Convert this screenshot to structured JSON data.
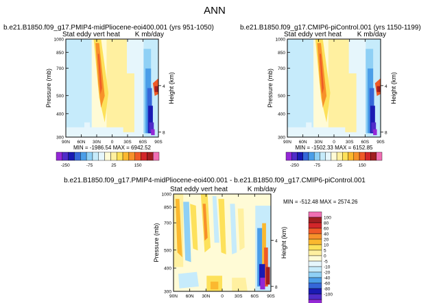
{
  "figure": {
    "title": "ANN",
    "label_colors": [
      "#9428d6",
      "#4f2cc9",
      "#1a1ab3",
      "#3567d9",
      "#4b9ee8",
      "#8fd0f5",
      "#c6ebfb",
      "#e6f6fc",
      "#fffbd6",
      "#fff0a0",
      "#fde15a",
      "#fbb82f",
      "#f7912a",
      "#ef5a27",
      "#d2262a",
      "#a11e21",
      "#f06fb3"
    ]
  },
  "chart_data": [
    {
      "type": "heatmap",
      "title": "b.e21.B1850.f09_g17.PMIP4-midPliocene-eoi400.001  (yrs 951-1050)",
      "left_title": "Stat eddy vert heat",
      "right_title": "K mb/day",
      "xlabel": "",
      "ylabel": "Pressure (mb)",
      "right_ylabel": "Height (km)",
      "x_ticks": [
        "90N",
        "60N",
        "30N",
        "0",
        "30S",
        "60S",
        "90S"
      ],
      "y_ticks": [
        "300",
        "400",
        "500",
        "700",
        "850",
        "1000"
      ],
      "height_ticks": [
        "8",
        "4"
      ],
      "stats": "MIN = -1986.54   MAX = 6942.52",
      "colorbar_labels": [
        "-250",
        "-75",
        "25",
        "150"
      ]
    },
    {
      "type": "heatmap",
      "title": "b.e21.B1850.f09_g17.CMIP6-piControl.001  (yrs 1150-1199)",
      "left_title": "Stat eddy vert heat",
      "right_title": "K mb/day",
      "xlabel": "",
      "ylabel": "Pressure (mb)",
      "right_ylabel": "Height (km)",
      "x_ticks": [
        "90N",
        "60N",
        "30N",
        "0",
        "30S",
        "60S",
        "90S"
      ],
      "y_ticks": [
        "300",
        "400",
        "500",
        "700",
        "850",
        "1000"
      ],
      "height_ticks": [
        "8",
        "4"
      ],
      "stats": "MIN = -1502.33   MAX = 6152.85",
      "colorbar_labels": [
        "-250",
        "-75",
        "25",
        "150"
      ]
    },
    {
      "type": "heatmap",
      "title": "b.e21.B1850.f09_g17.PMIP4-midPliocene-eoi400.001  -  b.e21.B1850.f09_g17.CMIP6-piControl.001",
      "left_title": "Stat eddy vert heat",
      "right_title": "K mb/day",
      "xlabel": "",
      "ylabel": "Pressure (mb)",
      "right_ylabel": "Height (km)",
      "x_ticks": [
        "90N",
        "60N",
        "30N",
        "0",
        "30S",
        "60S",
        "90S"
      ],
      "y_ticks": [
        "300",
        "400",
        "500",
        "700",
        "850",
        "1000"
      ],
      "height_ticks": [
        "8",
        "4"
      ],
      "stats": "MIN = -512.48   MAX = 2574.26",
      "colorbar_labels": [
        "100",
        "80",
        "60",
        "40",
        "20",
        "10",
        "5",
        "0",
        "-5",
        "-10",
        "-20",
        "-40",
        "-60",
        "-80",
        "-100"
      ],
      "colorbar_colors": [
        "#f06fb3",
        "#a11e21",
        "#d2262a",
        "#ef5a27",
        "#f7912a",
        "#fbb82f",
        "#fde15a",
        "#fff0a0",
        "#fffbd6",
        "#e6f6fc",
        "#c6ebfb",
        "#8fd0f5",
        "#4b9ee8",
        "#3567d9",
        "#1a1ab3",
        "#4f2cc9",
        "#9428d6"
      ]
    }
  ]
}
